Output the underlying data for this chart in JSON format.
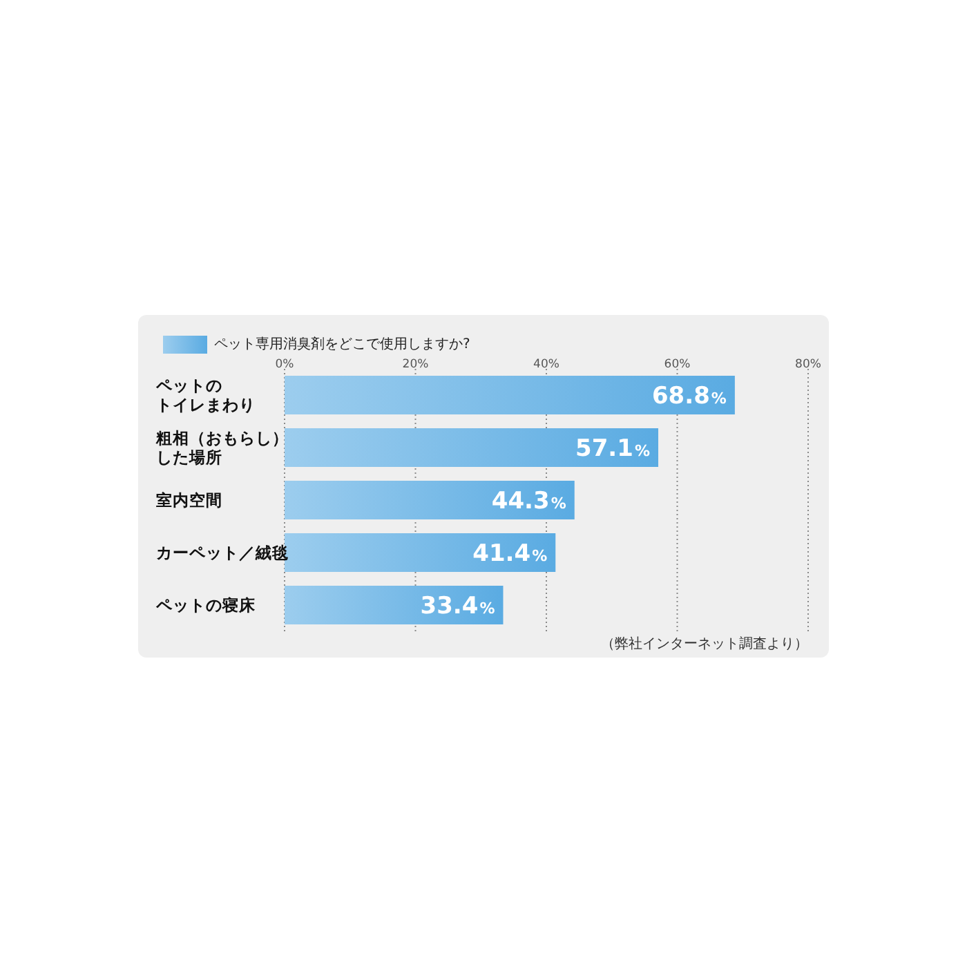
{
  "chart_data": {
    "type": "bar",
    "orientation": "horizontal",
    "categories": [
      "ペットのトイレまわり",
      "粗相（おもらし）した場所",
      "室内空間",
      "カーペット／絨毯",
      "ペットの寝床"
    ],
    "series": [
      {
        "name": "ペット専用消臭剤をどこで使用しますか?",
        "color": "#5aabe2",
        "values": [
          68.8,
          57.1,
          44.3,
          41.4,
          33.4
        ],
        "value_labels": [
          "68.8%",
          "57.1%",
          "44.3%",
          "41.4%",
          "33.4%"
        ]
      }
    ],
    "xlim": [
      0,
      80
    ],
    "xticks": [
      {
        "value": 0,
        "label": "0%"
      },
      {
        "value": 20,
        "label": "20%"
      },
      {
        "value": 40,
        "label": "40%"
      },
      {
        "value": 60,
        "label": "60%"
      },
      {
        "value": 80,
        "label": "80%"
      }
    ],
    "grid": "x",
    "legend": "top left",
    "annotations": [
      "（弊社インターネット調査より）"
    ]
  }
}
